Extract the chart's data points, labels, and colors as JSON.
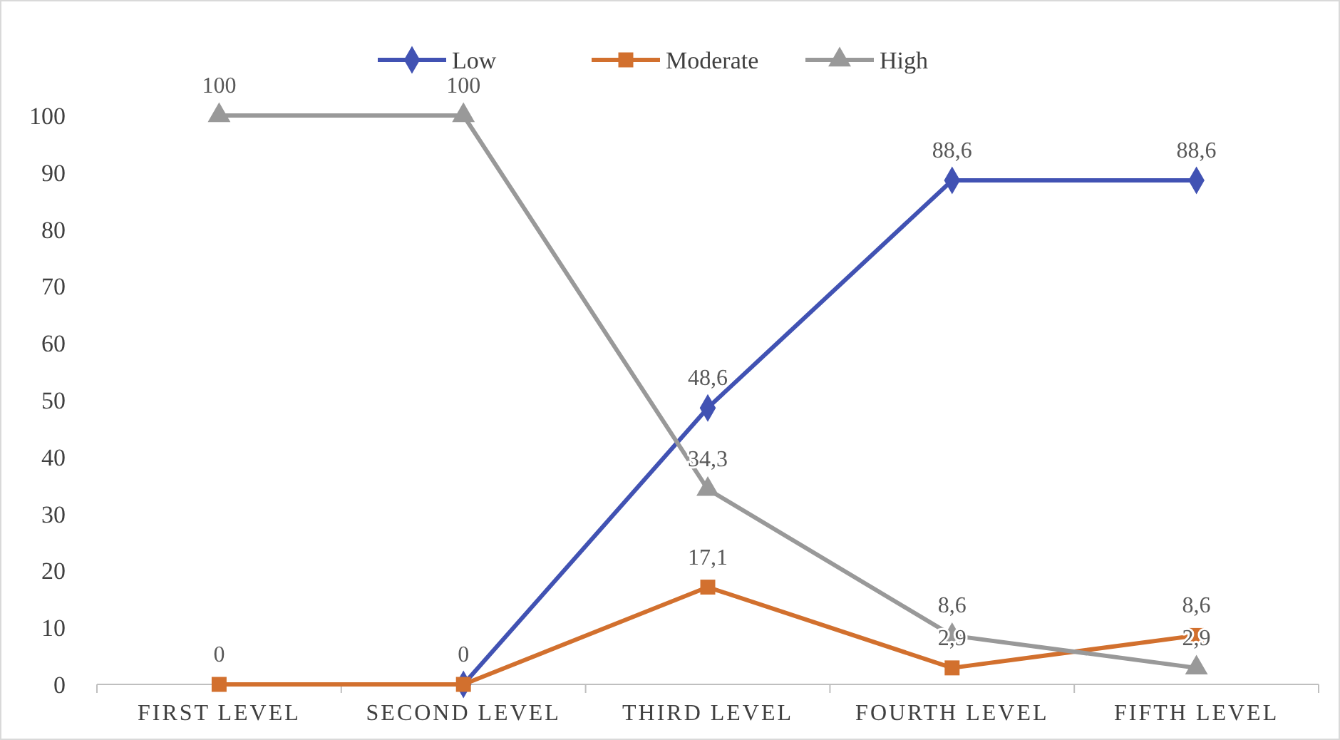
{
  "chart_data": {
    "type": "line",
    "categories": [
      "FIRST LEVEL",
      "SECOND LEVEL",
      "THIRD LEVEL",
      "FOURTH LEVEL",
      "FIFTH LEVEL"
    ],
    "series": [
      {
        "name": "Low",
        "color": "#4152b3",
        "marker": "diamond",
        "values": [
          null,
          0,
          48.6,
          88.6,
          88.6
        ],
        "value_labels": [
          null,
          null,
          "48,6",
          "88,6",
          "88,6"
        ]
      },
      {
        "name": "Moderate",
        "color": "#d2702e",
        "marker": "square",
        "values": [
          0,
          0,
          17.1,
          2.9,
          8.6
        ],
        "value_labels": [
          "0",
          "0",
          "17,1",
          "2,9",
          "8,6"
        ]
      },
      {
        "name": "High",
        "color": "#999999",
        "marker": "triangle",
        "values": [
          100,
          100,
          34.3,
          8.6,
          2.9
        ],
        "value_labels": [
          "100",
          "100",
          "34,3",
          "8,6",
          "2,9"
        ]
      }
    ],
    "ylim": [
      0,
      100
    ],
    "yticks": [
      0,
      10,
      20,
      30,
      40,
      50,
      60,
      70,
      80,
      90,
      100
    ],
    "grid": false,
    "legend": "top"
  }
}
